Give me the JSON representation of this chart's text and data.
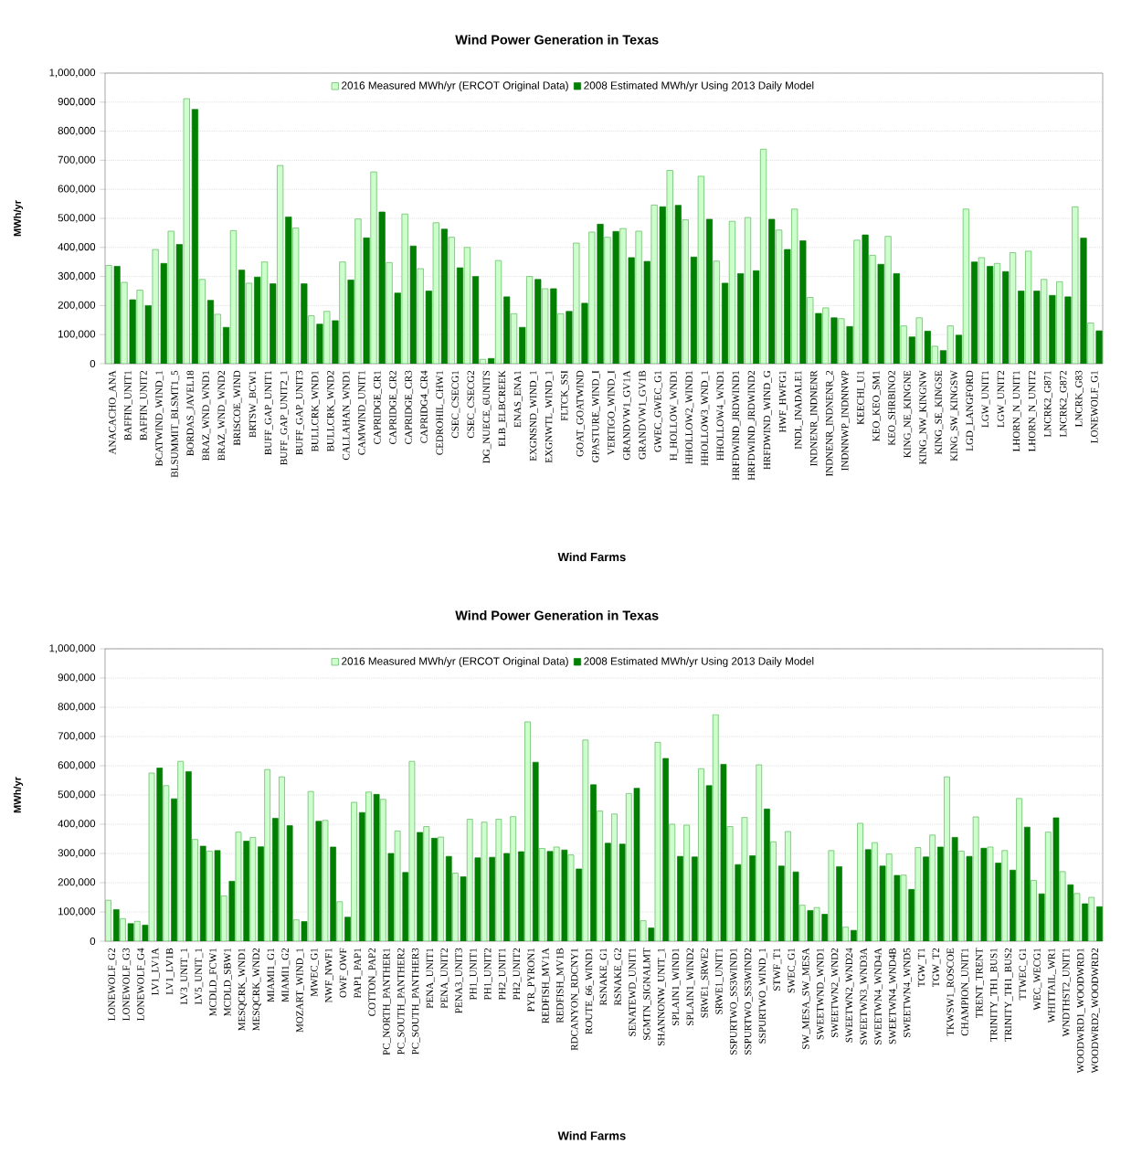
{
  "chart_data": [
    {
      "type": "bar",
      "title": "Wind Power Generation in Texas",
      "xlabel": "Wind Farms",
      "ylabel": "MWh/yr",
      "grid": "y",
      "legend": "top",
      "categories": [
        "ANACACHO_ANA",
        "BAFFIN_UNIT1",
        "BAFFIN_UNIT2",
        "BCATWIND_WIND_1",
        "BLSUMMIT_BLSMT1_5",
        "BORDAS_JAVEL18",
        "BRAZ_WND_WND1",
        "BRAZ_WND_WND2",
        "BRISCOE_WIND",
        "BRTSW_BCW1",
        "BUFF_GAP_UNIT1",
        "BUFF_GAP_UNIT2_1",
        "BUFF_GAP_UNIT3",
        "BULLCRK_WND1",
        "BULLCRK_WND2",
        "CALLAHAN_WND1",
        "CAMWIND_UNIT1",
        "CAPRIDGE_CR1",
        "CAPRIDGE_CR2",
        "CAPRIDGE_CR3",
        "CAPRIDG4_CR4",
        "CEDROHIL_CHW1",
        "CSEC_CSECG1",
        "CSEC_CSECG2",
        "DG_NUECE_6UNITS",
        "ELB_ELBCREEK",
        "ENAS_ENA1",
        "EXGNSND_WIND_1",
        "EXGNWTL_WIND_1",
        "FLTCK_SSI",
        "GOAT_GOATWIND",
        "GPASTURE_WIND_I",
        "VERTIGO_WIND_I",
        "GRANDVW1_GV1A",
        "GRANDVW1_GV1B",
        "GWEC_GWEC_G1",
        "H_HOLLOW_WND1",
        "HHOLLOW2_WIND1",
        "HHOLLOW3_WND_1",
        "HHOLLOW4_WND1",
        "HRFDWIND_JRDWIND1",
        "HRFDWIND_JRDWIND2",
        "HRFDWIND_WIND_G",
        "HWF_HWFG1",
        "INDL_INADALE1",
        "INDNENR_INDNENR",
        "INDNENR_INDNENR_2",
        "INDNNWP_INDNNWP",
        "KEECHI_U1",
        "KEO_KEO_SM1",
        "KEO_SHRBINO2",
        "KING_NE_KINGNE",
        "KING_NW_KINGNW",
        "KING_SE_KINGSE",
        "KING_SW_KINGSW",
        "LGD_LANGFORD",
        "LGW_UNIT1",
        "LGW_UNIT2",
        "LHORN_N_UNIT1",
        "LHORN_N_UNIT2",
        "LNCRK2_G871",
        "LNCRK2_G872",
        "LNCRK_G83",
        "LONEWOLF_G1"
      ],
      "ylim": [
        0,
        1000000
      ],
      "yticks": [
        {
          "value": 0,
          "label": "0"
        },
        {
          "value": 100000,
          "label": "100,000"
        },
        {
          "value": 200000,
          "label": "200,000"
        },
        {
          "value": 300000,
          "label": "300,000"
        },
        {
          "value": 400000,
          "label": "400,000"
        },
        {
          "value": 500000,
          "label": "500,000"
        },
        {
          "value": 600000,
          "label": "600,000"
        },
        {
          "value": 700000,
          "label": "700,000"
        },
        {
          "value": 800000,
          "label": "800,000"
        },
        {
          "value": 900000,
          "label": "900,000"
        },
        {
          "value": 1000000,
          "label": "1,000,000"
        }
      ],
      "series": [
        {
          "name": "2016 Measured MWh/yr (ERCOT Original Data)",
          "color": "#ccffcc",
          "values": [
            338000,
            280000,
            253000,
            393000,
            456000,
            912000,
            290000,
            170000,
            458000,
            277000,
            350000,
            682000,
            467000,
            165000,
            180000,
            350000,
            498000,
            660000,
            348000,
            515000,
            327000,
            485000,
            435000,
            400000,
            15000,
            355000,
            172000,
            300000,
            258000,
            172000,
            415000,
            453000,
            435000,
            465000,
            456000,
            546000,
            665000,
            495000,
            645000,
            353000,
            490000,
            503000,
            738000,
            460000,
            532000,
            228000,
            192000,
            155000,
            425000,
            373000,
            438000,
            130000,
            158000,
            60000,
            130000,
            532000,
            365000,
            345000,
            382000,
            387000,
            290000,
            282000,
            540000,
            140000
          ]
        },
        {
          "name": "2008 Estimated MWh/yr Using 2013 Daily Model",
          "color": "#008000",
          "values": [
            335000,
            220000,
            200000,
            345000,
            410000,
            875000,
            218000,
            125000,
            322000,
            298000,
            275000,
            505000,
            275000,
            136000,
            148000,
            288000,
            433000,
            522000,
            243000,
            405000,
            250000,
            463000,
            330000,
            300000,
            18000,
            230000,
            125000,
            290000,
            258000,
            180000,
            208000,
            480000,
            455000,
            365000,
            352000,
            540000,
            545000,
            367000,
            497000,
            277000,
            310000,
            320000,
            497000,
            393000,
            423000,
            173000,
            158000,
            128000,
            443000,
            342000,
            310000,
            92000,
            112000,
            45000,
            98000,
            350000,
            335000,
            317000,
            250000,
            250000,
            235000,
            230000,
            432000,
            113000
          ]
        }
      ]
    },
    {
      "type": "bar",
      "title": "Wind Power Generation in Texas",
      "xlabel": "Wind Farms",
      "ylabel": "MWh/yr",
      "grid": "y",
      "legend": "top",
      "categories": [
        "LONEWOLF_G2",
        "LONEWOLF_G3",
        "LONEWOLF_G4",
        "LV1_LV1A",
        "LV1_LV1B",
        "LV3_UNIT_1",
        "LV5_UNIT_1",
        "MCDLD_FCW1",
        "MCDLD_SBW1",
        "MESQCRK_WND1",
        "MESQCRK_WND2",
        "MIAMI1_G1",
        "MIAMI1_G2",
        "MOZART_WIND_1",
        "MWEC_G1",
        "NWF_NWF1",
        "OWF_OWF",
        "PAP1_PAP1",
        "COTTON_PAP2",
        "PC_NORTH_PANTHER1",
        "PC_SOUTH_PANTHER2",
        "PC_SOUTH_PANTHER3",
        "PENA_UNIT1",
        "PENA_UNIT2",
        "PENA3_UNIT3",
        "PH1_UNIT1",
        "PH1_UNIT2",
        "PH2_UNIT1",
        "PH2_UNIT2",
        "PYR_PYRON1",
        "REDFISH_MV1A",
        "REDFISH_MV1B",
        "RDCANYON_RDCNY1",
        "ROUTE_66_WIND1",
        "RSNAKE_G1",
        "RSNAKE_G2",
        "SENATEWD_UNIT1",
        "SGMTN_SIGNALMT",
        "SHANNONW_UNIT_1",
        "SPLAIN1_WIND1",
        "SPLAIN1_WIND2",
        "SRWE1_SRWE2",
        "SRWE1_UNIT1",
        "SSPURTWO_SS3WIND1",
        "SSPURTWO_SS3WIND2",
        "SSPURTWO_WIND_1",
        "STWF_T1",
        "SWEC_G1",
        "SW_MESA_SW_MESA",
        "SWEETWND_WND1",
        "SWEETWN2_WND2",
        "SWEETWN2_WND24",
        "SWEETWN3_WND3A",
        "SWEETWN4_WND4A",
        "SWEETWN4_WND4B",
        "SWEETWN4_WND5",
        "TGW_T1",
        "TGW_T2",
        "TKWSW1_ROSCOE",
        "CHAMPION_UNIT1",
        "TRENT_TRENT",
        "TRINITY_TH1_BUS1",
        "TRINITY_TH1_BUS2",
        "TTWEC_G1",
        "WEC_WECG1",
        "WHITTAIL_WR1",
        "WNDTHST2_UNIT1",
        "WOODWRD1_WOODWRD1",
        "WOODWRD2_WOODWRD2"
      ],
      "ylim": [
        0,
        1000000
      ],
      "yticks": [
        {
          "value": 0,
          "label": "0"
        },
        {
          "value": 100000,
          "label": "100,000"
        },
        {
          "value": 200000,
          "label": "200,000"
        },
        {
          "value": 300000,
          "label": "300,000"
        },
        {
          "value": 400000,
          "label": "400,000"
        },
        {
          "value": 500000,
          "label": "500,000"
        },
        {
          "value": 600000,
          "label": "600,000"
        },
        {
          "value": 700000,
          "label": "700,000"
        },
        {
          "value": 800000,
          "label": "800,000"
        },
        {
          "value": 900000,
          "label": "900,000"
        },
        {
          "value": 1000000,
          "label": "1,000,000"
        }
      ],
      "series": [
        {
          "name": "2016 Measured MWh/yr (ERCOT Original Data)",
          "color": "#ccffcc",
          "values": [
            140000,
            77000,
            68000,
            575000,
            532000,
            615000,
            348000,
            308000,
            155000,
            373000,
            355000,
            587000,
            562000,
            73000,
            512000,
            413000,
            135000,
            475000,
            510000,
            485000,
            377000,
            615000,
            392000,
            356000,
            233000,
            417000,
            407000,
            417000,
            426000,
            750000,
            317000,
            322000,
            295000,
            688000,
            445000,
            435000,
            505000,
            70000,
            680000,
            400000,
            397000,
            590000,
            775000,
            392000,
            423000,
            603000,
            340000,
            375000,
            123000,
            115000,
            310000,
            48000,
            403000,
            337000,
            298000,
            226000,
            320000,
            363000,
            562000,
            308000,
            425000,
            322000,
            310000,
            488000,
            208000,
            373000,
            238000,
            163000,
            150000
          ]
        },
        {
          "name": "2008 Estimated MWh/yr Using 2013 Daily Model",
          "color": "#008000",
          "values": [
            108000,
            60000,
            55000,
            592000,
            487000,
            580000,
            325000,
            310000,
            205000,
            342000,
            323000,
            420000,
            395000,
            67000,
            410000,
            322000,
            82000,
            440000,
            502000,
            300000,
            235000,
            372000,
            352000,
            290000,
            220000,
            285000,
            287000,
            300000,
            306000,
            612000,
            307000,
            312000,
            247000,
            535000,
            335000,
            332000,
            523000,
            45000,
            625000,
            290000,
            288000,
            532000,
            605000,
            262000,
            292000,
            452000,
            257000,
            237000,
            105000,
            92000,
            255000,
            37000,
            313000,
            257000,
            225000,
            177000,
            288000,
            322000,
            355000,
            290000,
            318000,
            267000,
            243000,
            390000,
            162000,
            422000,
            193000,
            128000,
            118000
          ]
        }
      ]
    }
  ]
}
